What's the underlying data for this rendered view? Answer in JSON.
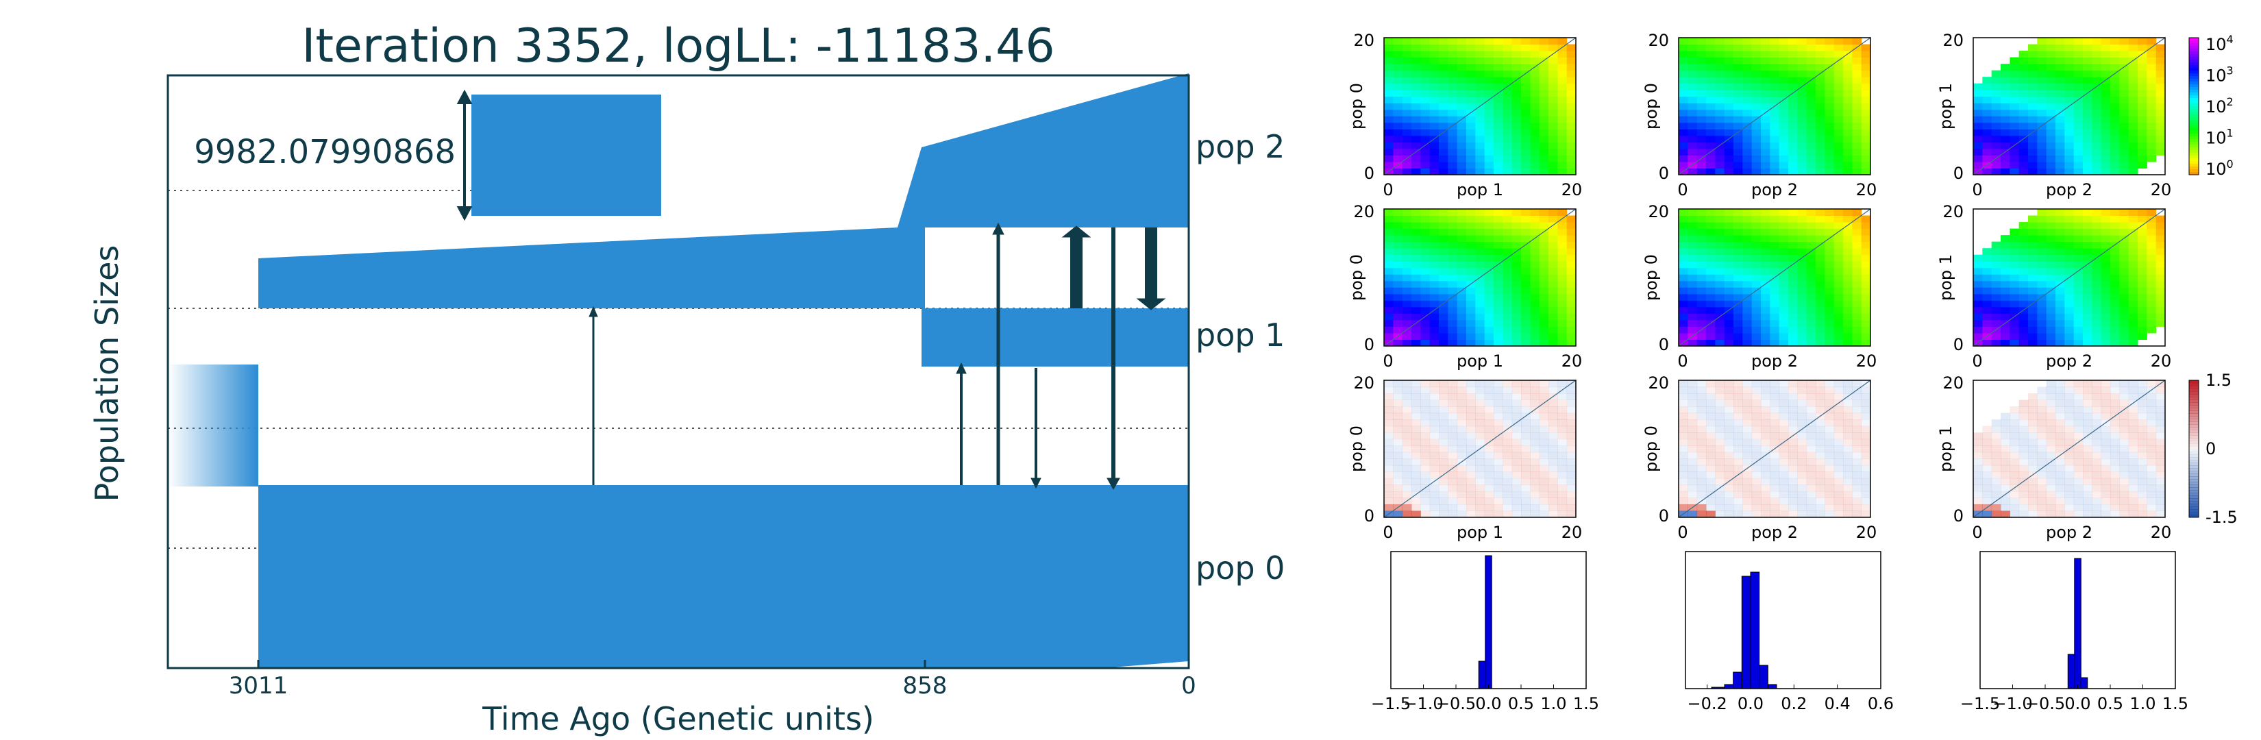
{
  "model": {
    "title": "Iteration 3352, logLL:  -11183.46",
    "ylabel": "Population Sizes",
    "xlabel": "Time Ago (Genetic units)",
    "time_ticks": [
      "3011",
      "858",
      "0"
    ],
    "scale_bar_value": "9982.07990868",
    "pop_labels": [
      "pop 2",
      "pop 1",
      "pop 0"
    ],
    "color": "#2b8bd3",
    "arrow_color": "#0f3a48"
  },
  "chart_data": [
    {
      "type": "heatmap",
      "panel": "observed-sfs-0-1",
      "ylabel": "pop 0",
      "xlabel": "pop 1",
      "xticks": [
        "0",
        "20"
      ],
      "yticks": [
        "0",
        "20"
      ],
      "colormap": "hsv",
      "scale": "log",
      "colorbar": {
        "ticks": [
          "10",
          "10",
          "10",
          "10",
          "10"
        ],
        "exponents": [
          "4",
          "3",
          "2",
          "1",
          "0"
        ]
      }
    },
    {
      "type": "heatmap",
      "panel": "observed-sfs-0-2",
      "ylabel": "pop 0",
      "xlabel": "pop 2",
      "xticks": [
        "0",
        "20"
      ],
      "yticks": [
        "0",
        "20"
      ]
    },
    {
      "type": "heatmap",
      "panel": "observed-sfs-1-2",
      "ylabel": "pop 1",
      "xlabel": "pop 2",
      "xticks": [
        "0",
        "20"
      ],
      "yticks": [
        "0",
        "20"
      ]
    },
    {
      "type": "heatmap",
      "panel": "model-sfs-0-1",
      "ylabel": "pop 0",
      "xlabel": "pop 1",
      "xticks": [
        "0",
        "20"
      ],
      "yticks": [
        "0",
        "20"
      ]
    },
    {
      "type": "heatmap",
      "panel": "model-sfs-0-2",
      "ylabel": "pop 0",
      "xlabel": "pop 2",
      "xticks": [
        "0",
        "20"
      ],
      "yticks": [
        "0",
        "20"
      ]
    },
    {
      "type": "heatmap",
      "panel": "model-sfs-1-2",
      "ylabel": "pop 1",
      "xlabel": "pop 2",
      "xticks": [
        "0",
        "20"
      ],
      "yticks": [
        "0",
        "20"
      ]
    },
    {
      "type": "heatmap",
      "panel": "residuals-0-1",
      "ylabel": "pop 0",
      "xlabel": "pop 1",
      "xticks": [
        "0",
        "20"
      ],
      "yticks": [
        "0",
        "20"
      ],
      "colormap": "RdBu_r",
      "colorbar": {
        "ticks": [
          "1.5",
          "0",
          "-1.5"
        ],
        "range": [
          -1.5,
          1.5
        ]
      }
    },
    {
      "type": "heatmap",
      "panel": "residuals-0-2",
      "ylabel": "pop 0",
      "xlabel": "pop 2",
      "xticks": [
        "0",
        "20"
      ],
      "yticks": [
        "0",
        "20"
      ]
    },
    {
      "type": "heatmap",
      "panel": "residuals-1-2",
      "ylabel": "pop 1",
      "xlabel": "pop 2",
      "xticks": [
        "0",
        "20"
      ],
      "yticks": [
        "0",
        "20"
      ]
    },
    {
      "type": "bar",
      "panel": "residual-hist-0-1",
      "xlim": [
        -1.5,
        1.5
      ],
      "xticks": [
        "−1.5",
        "−1.0",
        "−0.5",
        "0.0",
        "0.5",
        "1.0",
        "1.5"
      ],
      "bins": [
        [
          -0.15,
          -0.05,
          0.2
        ],
        [
          -0.05,
          0.05,
          0.97
        ]
      ],
      "color": "#0000dd"
    },
    {
      "type": "bar",
      "panel": "residual-hist-0-2",
      "xlim": [
        -0.3,
        0.6
      ],
      "xticks": [
        "−0.2",
        "0.0",
        "0.2",
        "0.4",
        "0.6"
      ],
      "bins": [
        [
          -0.18,
          -0.12,
          0.01
        ],
        [
          -0.12,
          -0.08,
          0.03
        ],
        [
          -0.08,
          -0.04,
          0.12
        ],
        [
          -0.04,
          0.0,
          0.82
        ],
        [
          0.0,
          0.04,
          0.85
        ],
        [
          0.04,
          0.08,
          0.17
        ],
        [
          0.08,
          0.12,
          0.03
        ]
      ],
      "color": "#0000dd"
    },
    {
      "type": "bar",
      "panel": "residual-hist-1-2",
      "xlim": [
        -1.5,
        1.5
      ],
      "xticks": [
        "−1.5",
        "−1.0",
        "−0.5",
        "0.0",
        "0.5",
        "1.0",
        "1.5"
      ],
      "bins": [
        [
          -0.15,
          -0.05,
          0.25
        ],
        [
          -0.05,
          0.05,
          0.95
        ],
        [
          0.05,
          0.15,
          0.08
        ]
      ],
      "color": "#0000dd"
    }
  ]
}
